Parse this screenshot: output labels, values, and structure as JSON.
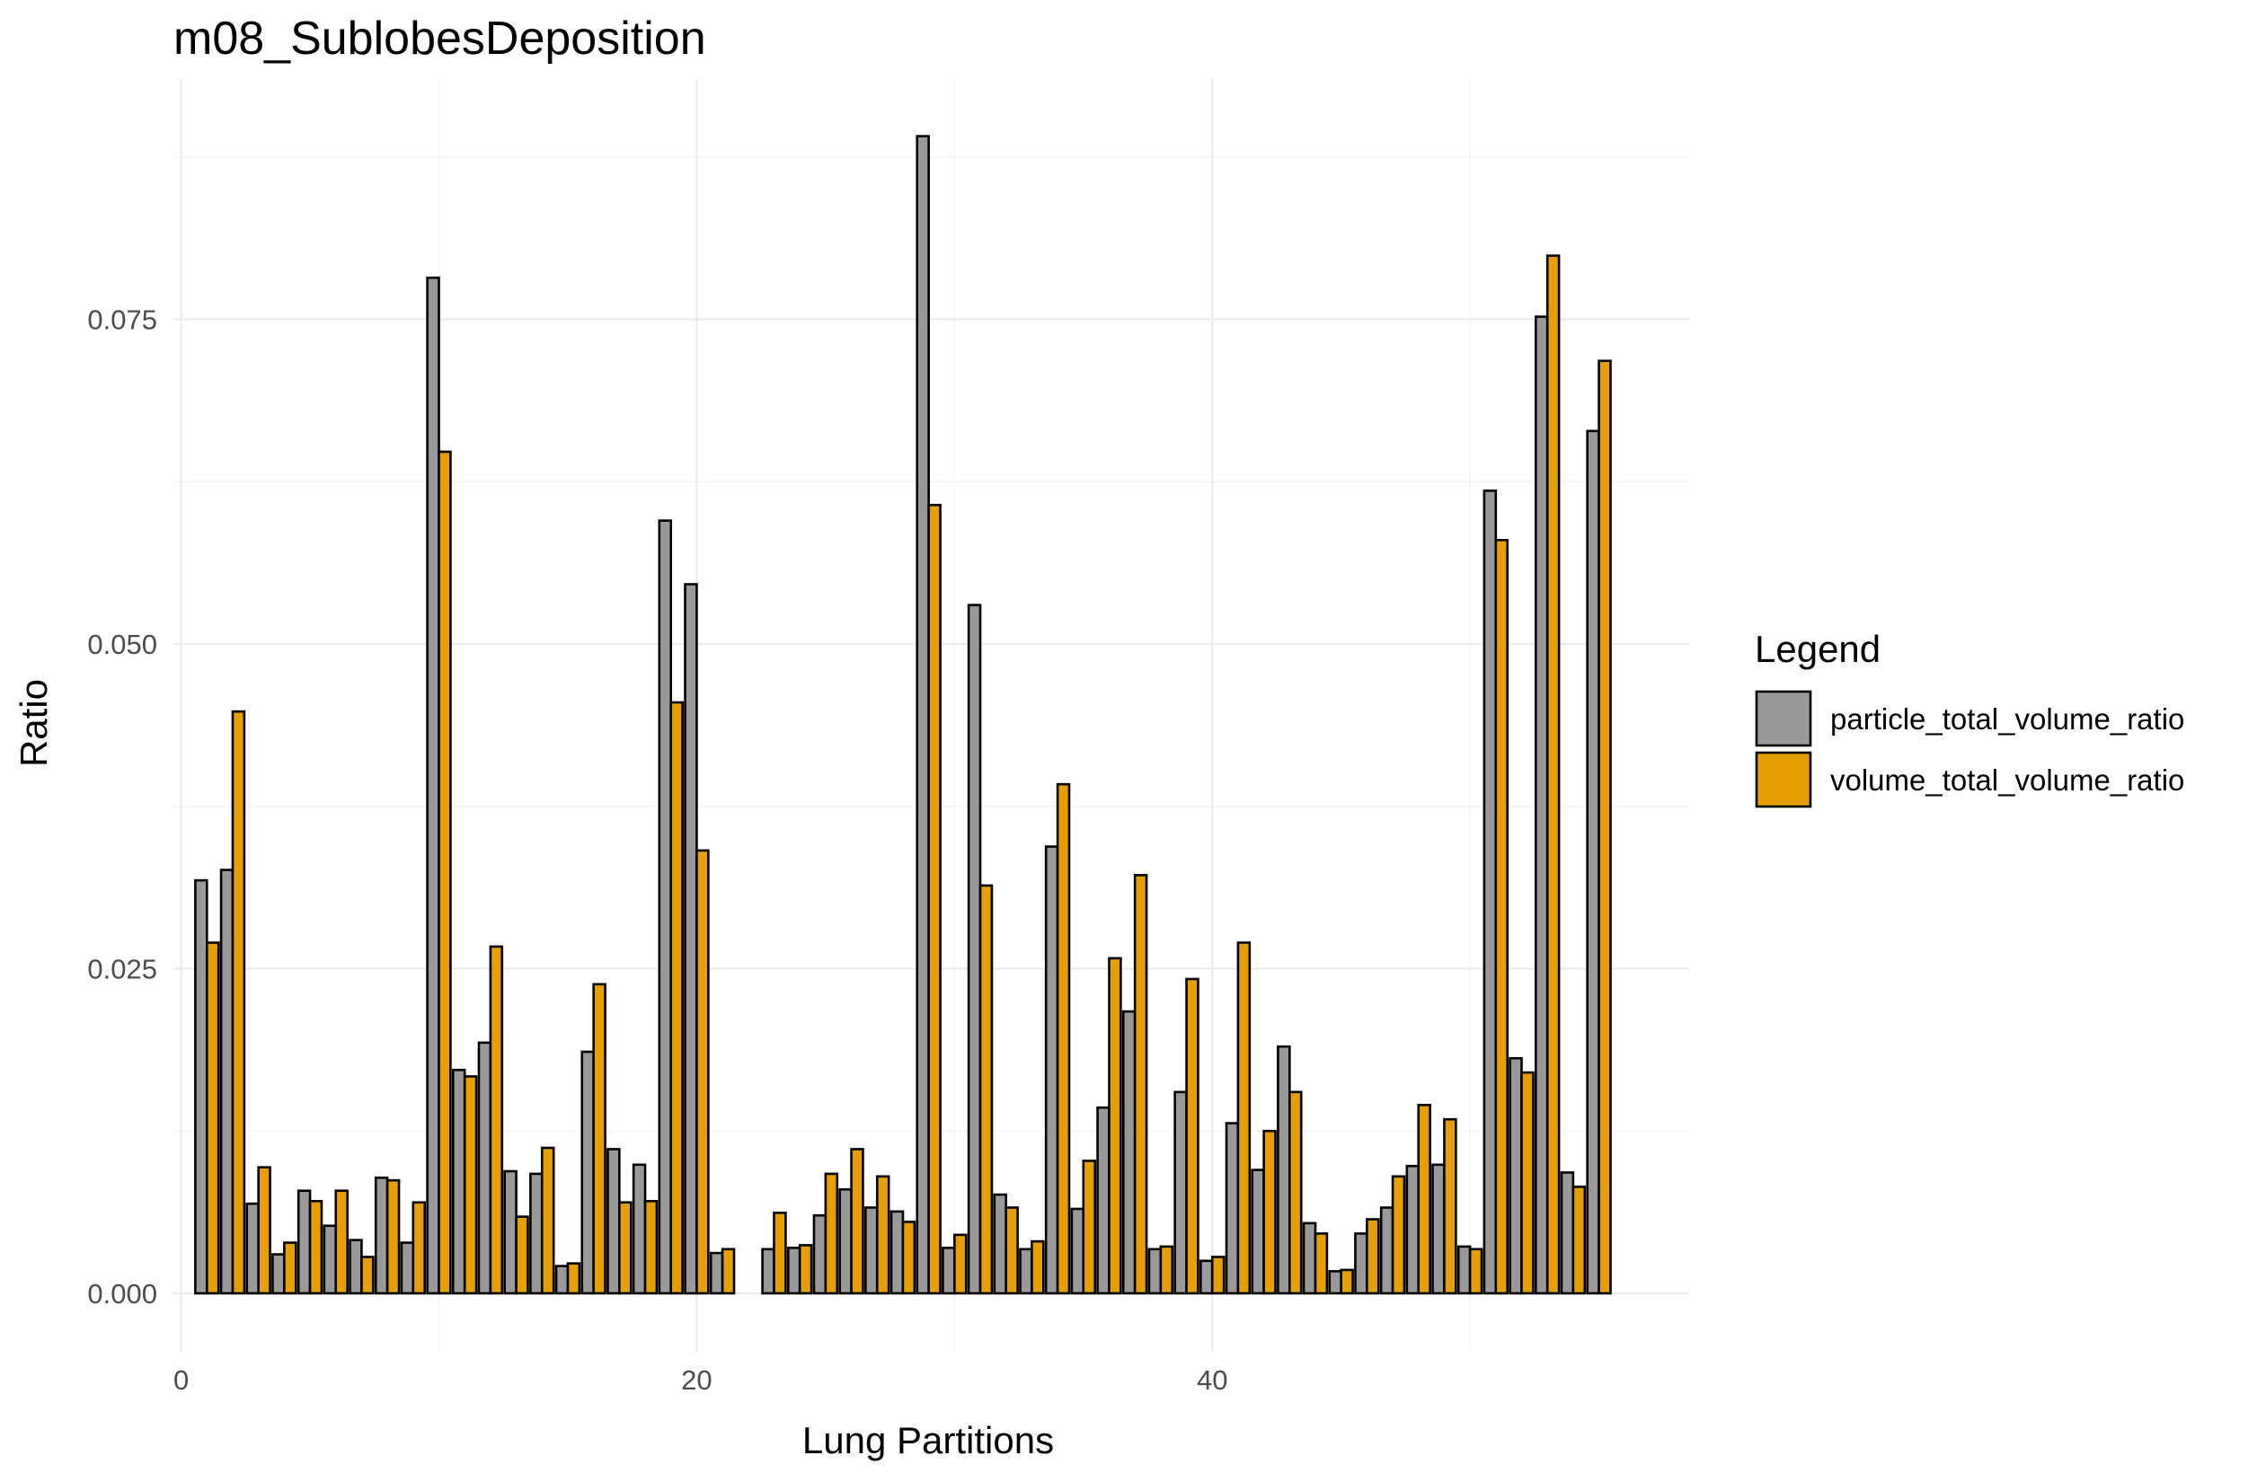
{
  "chart_data": {
    "type": "bar",
    "title": "m08_SublobesDeposition",
    "xlabel": "Lung Partitions",
    "ylabel": "Ratio",
    "xlim": [
      -0.3,
      58.5
    ],
    "ylim": [
      -0.0045,
      0.0935
    ],
    "x_ticks": [
      0,
      20,
      40
    ],
    "y_ticks": [
      0.0,
      0.025,
      0.05,
      0.075
    ],
    "y_tick_labels": [
      "0.000",
      "0.025",
      "0.050",
      "0.075"
    ],
    "grid": true,
    "legend": {
      "title": "Legend",
      "position": "right"
    },
    "categories": [
      1,
      2,
      3,
      4,
      5,
      6,
      7,
      8,
      9,
      10,
      11,
      12,
      13,
      14,
      15,
      16,
      17,
      18,
      19,
      20,
      21,
      22,
      23,
      24,
      25,
      26,
      27,
      28,
      29,
      30,
      31,
      32,
      33,
      34,
      35,
      36,
      37,
      38,
      39,
      40,
      41,
      42,
      43,
      44,
      45,
      46,
      47,
      48,
      49,
      50,
      51,
      52,
      53,
      54,
      55
    ],
    "series": [
      {
        "name": "particle_total_volume_ratio",
        "color": "#999999",
        "values": [
          0.0318,
          0.0326,
          0.0069,
          0.003,
          0.0079,
          0.0052,
          0.0041,
          0.0089,
          0.0039,
          0.0782,
          0.0172,
          0.0193,
          0.0094,
          0.0092,
          0.0021,
          0.0186,
          0.0111,
          0.0099,
          0.0595,
          0.0546,
          0.0031,
          0.0,
          0.0034,
          0.0035,
          0.006,
          0.008,
          0.0066,
          0.0063,
          0.0891,
          0.0035,
          0.053,
          0.0076,
          0.0034,
          0.0344,
          0.0065,
          0.0143,
          0.0217,
          0.0034,
          0.0155,
          0.0025,
          0.0131,
          0.0095,
          0.019,
          0.0054,
          0.0017,
          0.0046,
          0.0066,
          0.0098,
          0.0099,
          0.0036,
          0.0618,
          0.0181,
          0.0752,
          0.0093,
          0.0664
        ]
      },
      {
        "name": "volume_total_volume_ratio",
        "color": "#E69F00",
        "values": [
          0.027,
          0.0448,
          0.0097,
          0.0039,
          0.0071,
          0.0079,
          0.0028,
          0.0087,
          0.007,
          0.0648,
          0.0167,
          0.0267,
          0.0059,
          0.0112,
          0.0023,
          0.0238,
          0.007,
          0.0071,
          0.0455,
          0.0341,
          0.0034,
          0.0,
          0.0062,
          0.0037,
          0.0092,
          0.0111,
          0.009,
          0.0055,
          0.0607,
          0.0045,
          0.0314,
          0.0066,
          0.004,
          0.0392,
          0.0102,
          0.0258,
          0.0322,
          0.0036,
          0.0242,
          0.0028,
          0.027,
          0.0125,
          0.0155,
          0.0046,
          0.0018,
          0.0057,
          0.009,
          0.0145,
          0.0134,
          0.0034,
          0.058,
          0.017,
          0.0799,
          0.0082,
          0.0718
        ]
      }
    ]
  }
}
